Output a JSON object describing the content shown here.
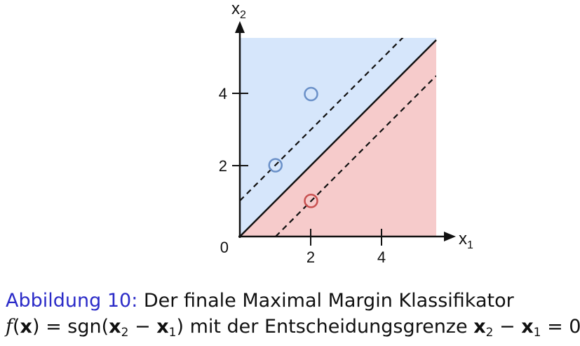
{
  "diagram": {
    "x_axis": {
      "label": "x",
      "label_sub": "1",
      "ticks": [
        "2",
        "4"
      ]
    },
    "y_axis": {
      "label": "x",
      "label_sub": "2",
      "ticks": [
        "2",
        "4"
      ]
    },
    "origin_label": "0",
    "decision_boundary": "x2 - x1 = 0",
    "margins": [
      "x2 - x1 = 1",
      "x2 - x1 = -1"
    ],
    "regions": {
      "positive_color": "#d6e6fb",
      "negative_color": "#f6cbcb"
    },
    "points": [
      {
        "x": 1,
        "y": 2,
        "class": "positive",
        "color": "#6a90c8"
      },
      {
        "x": 2,
        "y": 4,
        "class": "positive",
        "color": "#6a90c8"
      },
      {
        "x": 2,
        "y": 1,
        "class": "negative",
        "color": "#c85050"
      }
    ]
  },
  "caption": {
    "label": "Abbildung 10:",
    "line1_text": "Der finale Maximal Margin Klassifikator",
    "f": "f",
    "x_bold": "x",
    "eq_sgn": ") = sgn(",
    "x2": "x",
    "sub2": "2",
    "minus": " − ",
    "x1": "x",
    "sub1": "1",
    "mid_text": ") mit der Entscheidungsgrenze ",
    "x2b": "x",
    "sub2b": "2",
    "minus_b": " − ",
    "x1b": "x",
    "sub1b": "1",
    "end": " = 0."
  }
}
